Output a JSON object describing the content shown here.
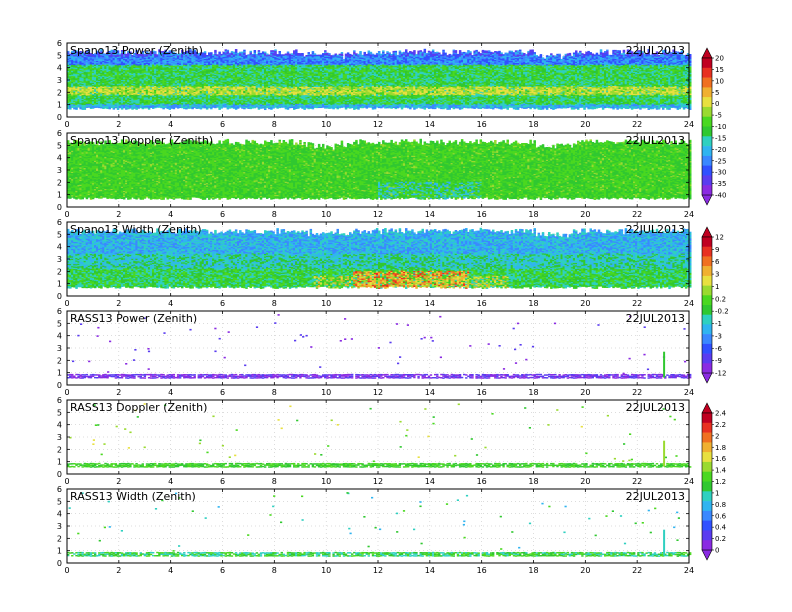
{
  "page": {
    "background": "#ffffff"
  },
  "x_ticks": [
    0,
    2,
    4,
    6,
    8,
    10,
    12,
    14,
    16,
    18,
    20,
    22,
    24
  ],
  "y_ticks": [
    0,
    1,
    2,
    3,
    4,
    5,
    6
  ],
  "colorbars": [
    {
      "ticks": [
        "20",
        "15",
        "10",
        "5",
        "0",
        "-5",
        "-10",
        "-15",
        "-20",
        "-25",
        "-30",
        "-35",
        "-40"
      ]
    },
    {
      "ticks": [
        "12",
        "9",
        "6",
        "3",
        "1",
        "0.2",
        "-0.2",
        "-1",
        "-3",
        "-6",
        "-9",
        "-12"
      ]
    },
    {
      "ticks": [
        "2.4",
        "2.2",
        "2",
        "1.8",
        "1.6",
        "1.4",
        "1.2",
        "1",
        "0.8",
        "0.6",
        "0.4",
        "0.2",
        "0"
      ]
    }
  ],
  "palette": [
    "#8a2be2",
    "#5a3cf0",
    "#3050ff",
    "#3a88ff",
    "#30b4f0",
    "#2fd0c0",
    "#30c830",
    "#4ad820",
    "#9ada30",
    "#e8e040",
    "#f0b030",
    "#f07020",
    "#e83020",
    "#c00020"
  ],
  "chart_data": [
    {
      "type": "heatmap",
      "title": "Spano13 Power (Zenith)",
      "date": "22JUL2013",
      "xlim": [
        0,
        24
      ],
      "ylim": [
        0,
        6
      ],
      "x_ticks": [
        0,
        2,
        4,
        6,
        8,
        10,
        12,
        14,
        16,
        18,
        20,
        22,
        24
      ],
      "y_ticks": [
        0,
        1,
        2,
        3,
        4,
        5,
        6
      ],
      "grid": true,
      "colorbar_ticks": [
        20,
        15,
        10,
        5,
        0,
        -5,
        -10,
        -15,
        -20,
        -25,
        -30,
        -35,
        -40
      ],
      "coverage": {
        "bottom": 0.6,
        "top": 5.2
      },
      "pattern": "power"
    },
    {
      "type": "heatmap",
      "title": "Spano13 Doppler (Zenith)",
      "date": "22JUL2013",
      "xlim": [
        0,
        24
      ],
      "ylim": [
        0,
        6
      ],
      "x_ticks": [
        0,
        2,
        4,
        6,
        8,
        10,
        12,
        14,
        16,
        18,
        20,
        22,
        24
      ],
      "y_ticks": [
        0,
        1,
        2,
        3,
        4,
        5,
        6
      ],
      "grid": true,
      "coverage": {
        "bottom": 0.6,
        "top": 5.2
      },
      "pattern": "doppler"
    },
    {
      "type": "heatmap",
      "title": "Spano13 Width (Zenith)",
      "date": "22JUL2013",
      "xlim": [
        0,
        24
      ],
      "ylim": [
        0,
        6
      ],
      "x_ticks": [
        0,
        2,
        4,
        6,
        8,
        10,
        12,
        14,
        16,
        18,
        20,
        22,
        24
      ],
      "y_ticks": [
        0,
        1,
        2,
        3,
        4,
        5,
        6
      ],
      "grid": true,
      "colorbar_ticks": [
        12,
        9,
        6,
        3,
        1,
        0.2,
        -0.2,
        -1,
        -3,
        -6,
        -9,
        -12
      ],
      "coverage": {
        "bottom": 0.6,
        "top": 5.2
      },
      "pattern": "width"
    },
    {
      "type": "heatmap",
      "title": "RASS13 Power (Zenith)",
      "date": "22JUL2013",
      "xlim": [
        0,
        24
      ],
      "ylim": [
        0,
        6
      ],
      "x_ticks": [
        0,
        2,
        4,
        6,
        8,
        10,
        12,
        14,
        16,
        18,
        20,
        22,
        24
      ],
      "y_ticks": [
        0,
        1,
        2,
        3,
        4,
        5,
        6
      ],
      "grid": true,
      "coverage": {
        "bottom": 0.5,
        "top": 1.0
      },
      "spike_x": 23.0,
      "pattern": "rass_power"
    },
    {
      "type": "heatmap",
      "title": "RASS13 Doppler (Zenith)",
      "date": "22JUL2013",
      "xlim": [
        0,
        24
      ],
      "ylim": [
        0,
        6
      ],
      "x_ticks": [
        0,
        2,
        4,
        6,
        8,
        10,
        12,
        14,
        16,
        18,
        20,
        22,
        24
      ],
      "y_ticks": [
        0,
        1,
        2,
        3,
        4,
        5,
        6
      ],
      "grid": true,
      "colorbar_ticks": [
        2.4,
        2.2,
        2,
        1.8,
        1.6,
        1.4,
        1.2,
        1,
        0.8,
        0.6,
        0.4,
        0.2,
        0
      ],
      "coverage": {
        "bottom": 0.5,
        "top": 0.85
      },
      "spike_x": 23.0,
      "pattern": "rass_doppler"
    },
    {
      "type": "heatmap",
      "title": "RASS13 Width (Zenith)",
      "date": "22JUL2013",
      "xlim": [
        0,
        24
      ],
      "ylim": [
        0,
        6
      ],
      "x_ticks": [
        0,
        2,
        4,
        6,
        8,
        10,
        12,
        14,
        16,
        18,
        20,
        22,
        24
      ],
      "y_ticks": [
        0,
        1,
        2,
        3,
        4,
        5,
        6
      ],
      "grid": true,
      "coverage": {
        "bottom": 0.5,
        "top": 0.85
      },
      "spike_x": 23.0,
      "pattern": "rass_width"
    }
  ]
}
